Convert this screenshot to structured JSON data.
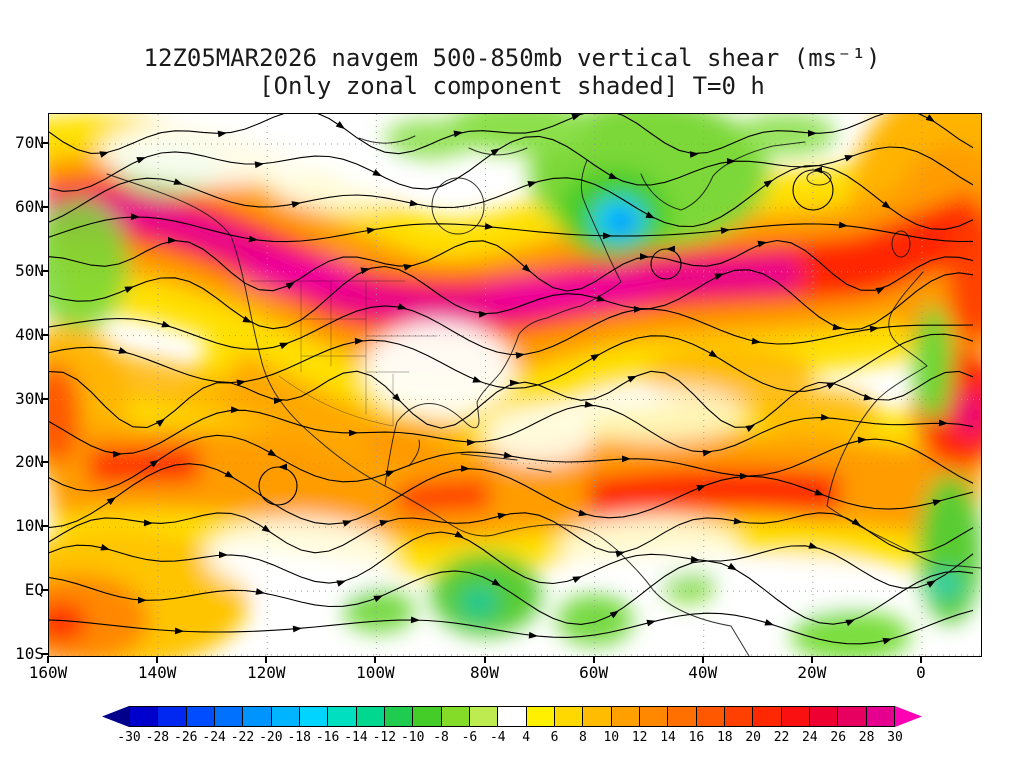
{
  "title": {
    "line1": "12Z05MAR2026 navgem 500-850mb vertical shear (ms⁻¹)",
    "line2": "[Only zonal component shaded] T=0 h"
  },
  "map": {
    "lat_labels": [
      "70N",
      "60N",
      "50N",
      "40N",
      "30N",
      "20N",
      "10N",
      "EQ",
      "10S"
    ],
    "lon_labels": [
      "160W",
      "140W",
      "120W",
      "100W",
      "80W",
      "60W",
      "40W",
      "20W",
      "0"
    ]
  },
  "colorbar": {
    "labels": [
      "-30",
      "-28",
      "-26",
      "-24",
      "-22",
      "-20",
      "-18",
      "-16",
      "-14",
      "-12",
      "-10",
      "-8",
      "-6",
      "-4",
      "4",
      "6",
      "8",
      "10",
      "12",
      "14",
      "16",
      "18",
      "20",
      "22",
      "24",
      "26",
      "28",
      "30"
    ],
    "cells": [
      "#0000cd",
      "#0028f0",
      "#004cff",
      "#0070ff",
      "#0094ff",
      "#00b4ff",
      "#00d4ff",
      "#00e0c0",
      "#00d890",
      "#20cc50",
      "#44cc28",
      "#84dc28",
      "#bcec50",
      "#ffffff",
      "#fff000",
      "#ffd800",
      "#ffbc00",
      "#ffa000",
      "#ff8800",
      "#ff7000",
      "#ff5800",
      "#ff4000",
      "#ff2800",
      "#fa1010",
      "#ee0030",
      "#e80060",
      "#e60090"
    ],
    "left_arrow": "#00008b",
    "right_arrow": "#ff00b4"
  },
  "chart_data": {
    "type": "heatmap",
    "title": "12Z05MAR2026 navgem 500-850mb vertical shear (ms⁻¹)",
    "subtitle": "[Only zonal component shaded] T=0 h",
    "model": "navgem",
    "valid_time": "12Z05MAR2026",
    "forecast_hour": "T=0 h",
    "variable": "500-850mb vertical shear, zonal component shaded, shear-vector streamlines overlaid",
    "units": "ms⁻¹",
    "x_axis": {
      "label": "longitude",
      "ticks": [
        "160W",
        "140W",
        "120W",
        "100W",
        "80W",
        "60W",
        "40W",
        "20W",
        "0"
      ],
      "range": [
        "160W",
        "10E"
      ]
    },
    "y_axis": {
      "label": "latitude",
      "ticks": [
        "70N",
        "60N",
        "50N",
        "40N",
        "30N",
        "20N",
        "10N",
        "EQ",
        "10S"
      ],
      "range": [
        "10S",
        "75N"
      ]
    },
    "grid": "dotted gray at 10° latitude / 20° longitude",
    "legend_position": "horizontal colorbar below map",
    "colorbar_levels": [
      -30,
      -28,
      -26,
      -24,
      -22,
      -20,
      -18,
      -16,
      -14,
      -12,
      -10,
      -8,
      -6,
      -4,
      4,
      6,
      8,
      10,
      12,
      14,
      16,
      18,
      20,
      22,
      24,
      26,
      28,
      30
    ],
    "colorbar_colors": [
      "#00008b",
      "#0000cd",
      "#0028f0",
      "#004cff",
      "#0070ff",
      "#0094ff",
      "#00b4ff",
      "#00d4ff",
      "#00e0c0",
      "#00d890",
      "#20cc50",
      "#44cc28",
      "#84dc28",
      "#bcec50",
      "#ffffff",
      "#fff000",
      "#ffd800",
      "#ffbc00",
      "#ffa000",
      "#ff8800",
      "#ff7000",
      "#ff5800",
      "#ff4000",
      "#ff2800",
      "#fa1010",
      "#ee0030",
      "#e80060",
      "#e60090",
      "#ff00b4"
    ],
    "features": [
      "Intense positive zonal shear band (>26 ms⁻¹, magenta/red) along roughly 45-60N stretching from the northeast Pacific across southern Canada / northern USA and across the North Atlantic toward 20W",
      "Broad positive shear 8-20 ms⁻¹ (orange) across the subtropics near 10-25N from the central Pacific across the Caribbean and tropical Atlantic to West Africa",
      "Local positive maximum (red/magenta) off northwest Africa near 0-10W, 25-32N",
      "Negative shear (green with cyan/blue core near -14 to -20 ms⁻¹) over the Labrador Sea / Davis Strait around 55W 58N and over parts of Greenland and the Canadian Arctic",
      "Scattered weak negative shear (green, -6 to -12 ms⁻¹) along the equator near 80W, near 60W, in the far eastern tropical Atlantic near the African coast, and south of 5S near 10W",
      "Near-zero shear (white, -4 to 4 ms⁻¹) over the central USA, parts of the subtropical Atlantic near 30N and broad equatorial strips",
      "Streamlines with arrowheads indicate the shear vector, predominantly westerly (eastward) in midlatitudes with closed circulations near 118W 17N, 47W 52N and 20W 63N"
    ]
  }
}
